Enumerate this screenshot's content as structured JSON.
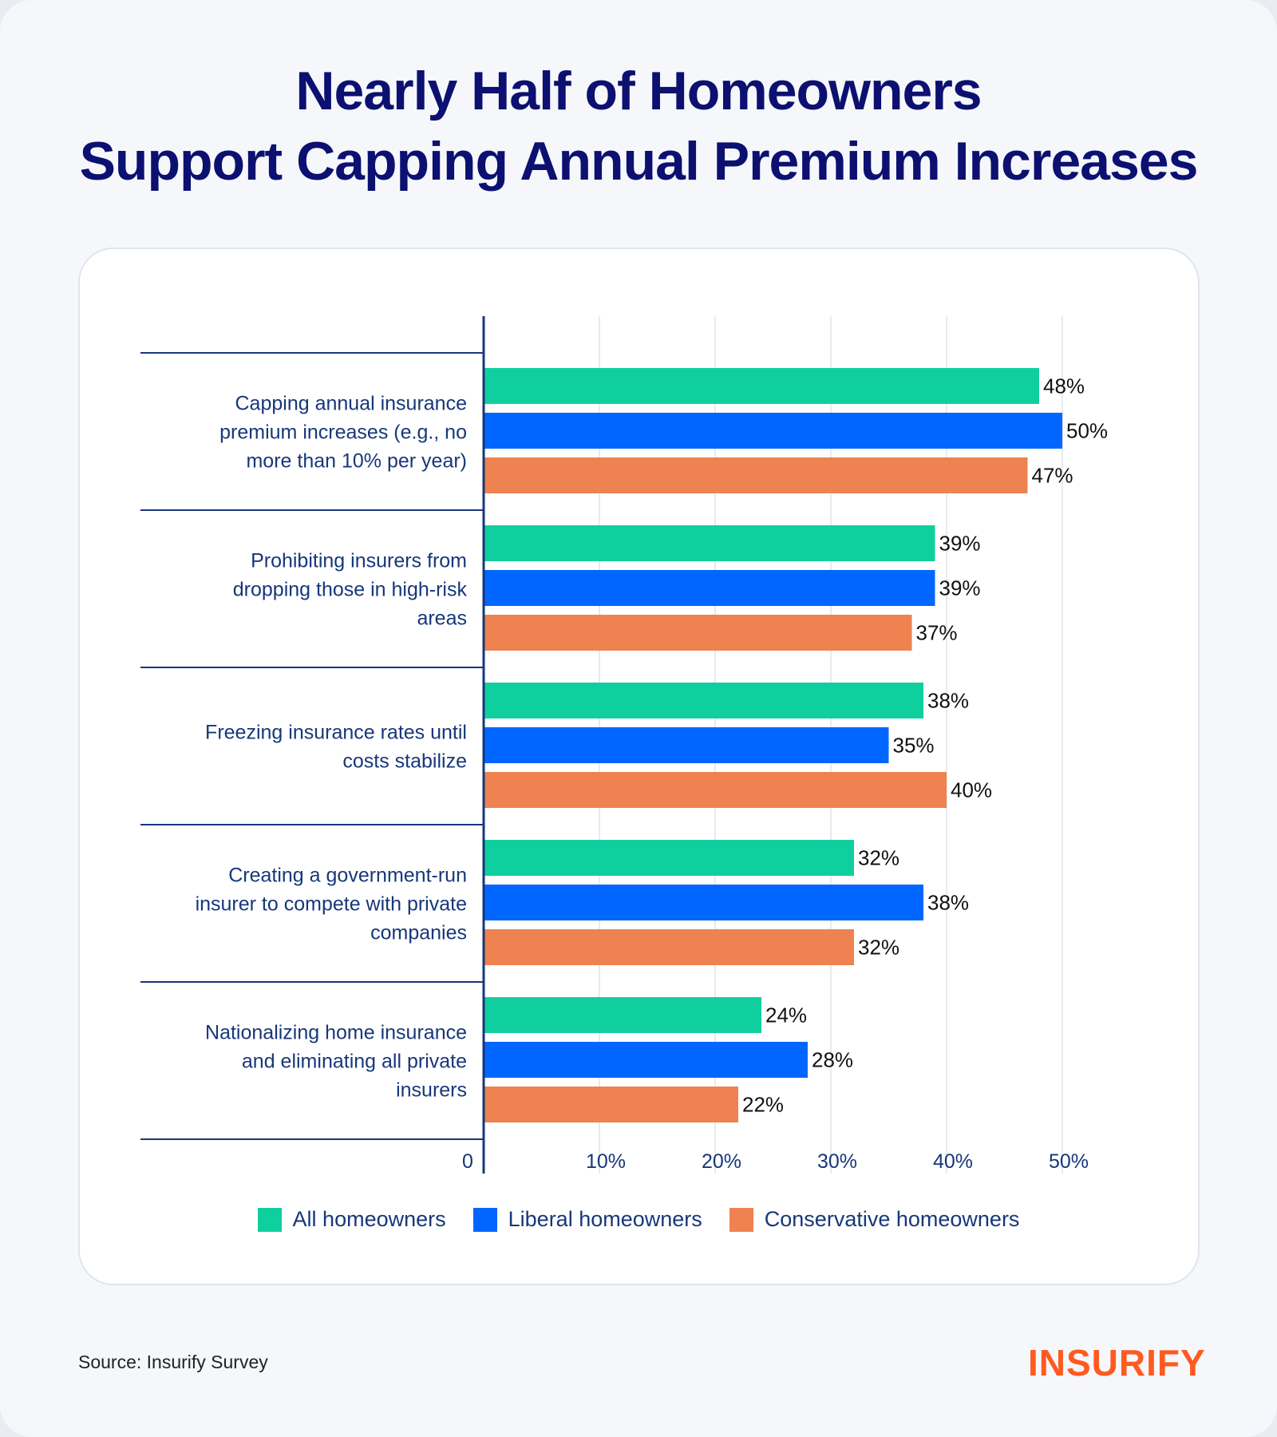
{
  "title_lines": [
    "Nearly Half of Homeowners",
    "Support Capping Annual Premium Increases"
  ],
  "source": "Source: Insurify Survey",
  "logo": "INSURIFY",
  "chart_data": {
    "type": "bar",
    "orientation": "horizontal",
    "title": "Nearly Half of Homeowners Support Capping Annual Premium Increases",
    "categories": [
      [
        "Capping annual insurance",
        "premium increases (e.g., no",
        "more than 10% per year)"
      ],
      [
        "Prohibiting insurers from",
        "dropping those in high-risk",
        "areas"
      ],
      [
        "Freezing insurance rates until",
        "costs stabilize"
      ],
      [
        "Creating a government-run",
        "insurer to compete with private",
        "companies"
      ],
      [
        "Nationalizing home insurance",
        "and eliminating all private",
        "insurers"
      ]
    ],
    "series": [
      {
        "name": "All homeowners",
        "color": "#10cf9e",
        "values": [
          48,
          39,
          38,
          32,
          24
        ]
      },
      {
        "name": "Liberal homeowners",
        "color": "#0066ff",
        "values": [
          50,
          39,
          35,
          38,
          28
        ]
      },
      {
        "name": "Conservative homeowners",
        "color": "#ee8250",
        "values": [
          47,
          37,
          40,
          32,
          22
        ]
      }
    ],
    "xticks": [
      "0",
      "10%",
      "20%",
      "30%",
      "40%",
      "50%"
    ],
    "xlim": [
      0,
      50
    ],
    "grid": true,
    "legend": "bottom"
  }
}
